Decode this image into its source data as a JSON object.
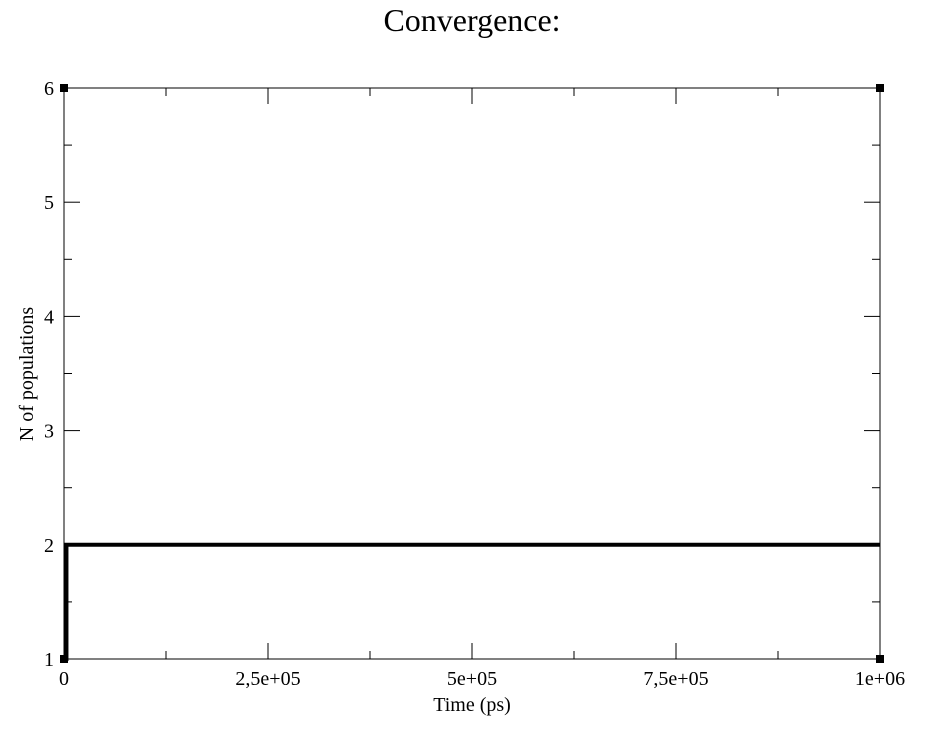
{
  "chart_data": {
    "type": "line",
    "title": "Convergence:",
    "xlabel": "Time (ps)",
    "ylabel": "N of populations",
    "xlim": [
      0,
      1000000
    ],
    "ylim": [
      1,
      6
    ],
    "x_major_ticks": [
      0,
      250000,
      500000,
      750000,
      1000000
    ],
    "x_tick_labels": [
      "0",
      "2,5e+05",
      "5e+05",
      "7,5e+05",
      "1e+06"
    ],
    "x_minor_ticks": [
      125000,
      375000,
      625000,
      875000
    ],
    "y_major_ticks": [
      1,
      2,
      3,
      4,
      5,
      6
    ],
    "y_tick_labels": [
      "1",
      "2",
      "3",
      "4",
      "5",
      "6"
    ],
    "y_minor_ticks": [
      1.5,
      2.5,
      3.5,
      4.5,
      5.5
    ],
    "grid": false,
    "legend": "none",
    "series": [
      {
        "color": "#000000",
        "step": true,
        "x": [
          0,
          3000,
          1000000
        ],
        "y": [
          1,
          2,
          2
        ]
      }
    ]
  }
}
